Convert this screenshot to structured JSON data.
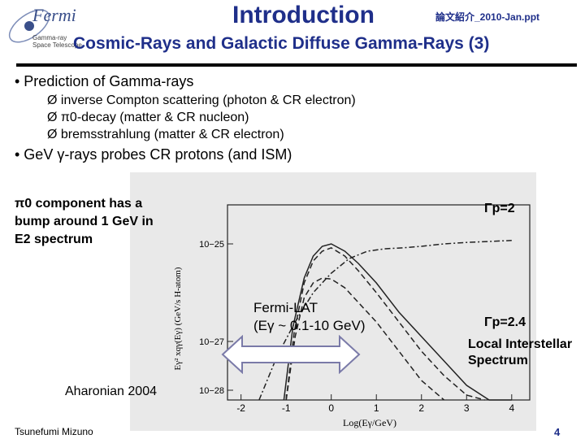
{
  "header": {
    "logo_text": "Fermi",
    "logo_sub": [
      "Gamma-ray",
      "Space Telescope"
    ],
    "title": "Introduction",
    "file_ref": "論文紹介_2010-Jan.ppt",
    "subtitle": "Cosmic-Rays and Galactic Diffuse Gamma-Rays (3)"
  },
  "body": {
    "bullet1": "• Prediction of Gamma-rays",
    "sub_bullets": [
      "Ø inverse Compton scattering (photon & CR electron)",
      "Ø π0-decay (matter & CR nucleon)",
      "Ø bremsstrahlung (matter & CR electron)"
    ],
    "bullet2": "• GeV γ-rays probes CR protons (and ISM)"
  },
  "annotations": {
    "pi0_note": [
      "π0 component has a",
      "bump around 1 GeV in",
      "E2 spectrum"
    ],
    "gamma_p2": "Γp=2",
    "gamma_p24": "Γp=2.4",
    "fermi_lat": [
      "Fermi-LAT",
      "(Eγ ~ 0.1-10 GeV)"
    ],
    "lis": [
      "Local Interstellar",
      "Spectrum"
    ],
    "reference": "Aharonian 2004"
  },
  "chart_data": {
    "type": "line",
    "title": "",
    "xlabel": "Log(Eγ/GeV)",
    "ylabel": "Eγ² xqγ(Eγ)  (GeV/s H-atom)",
    "xlim": [
      -2.3,
      4.4
    ],
    "ylim_log10": [
      -28.2,
      -24.2
    ],
    "x_ticks": [
      -2,
      -1,
      0,
      1,
      2,
      3,
      4
    ],
    "y_ticks": [
      {
        "label": "10−25",
        "log10": -25
      },
      {
        "label": "10−27",
        "log10": -27
      },
      {
        "label": "10−28",
        "log10": -28
      }
    ],
    "grid": false,
    "series": [
      {
        "style": "dot-dash",
        "x": [
          -1.6,
          -1.2,
          -0.8,
          -0.4,
          0,
          0.4,
          0.8,
          1.2,
          1.6,
          2,
          2.5,
          3,
          3.5,
          4
        ],
        "y": [
          -28.2,
          -27.3,
          -26.6,
          -26.0,
          -25.6,
          -25.3,
          -25.15,
          -25.1,
          -25.08,
          -25.05,
          -25.0,
          -24.97,
          -24.95,
          -24.93
        ]
      },
      {
        "style": "solid",
        "x": [
          -1.05,
          -0.85,
          -0.6,
          -0.4,
          -0.2,
          0,
          0.3,
          0.6,
          1,
          1.5,
          2,
          2.5,
          3,
          3.5,
          4
        ],
        "y": [
          -28.2,
          -26.7,
          -25.7,
          -25.25,
          -25.05,
          -25.0,
          -25.15,
          -25.4,
          -25.8,
          -26.4,
          -26.9,
          -27.4,
          -27.9,
          -28.2,
          -28.2
        ]
      },
      {
        "style": "dash",
        "x": [
          -1.0,
          -0.82,
          -0.6,
          -0.4,
          -0.2,
          0,
          0.3,
          0.6,
          1,
          1.5,
          2,
          2.5,
          3,
          3.4
        ],
        "y": [
          -28.2,
          -26.8,
          -25.8,
          -25.35,
          -25.15,
          -25.08,
          -25.25,
          -25.55,
          -26.0,
          -26.6,
          -27.2,
          -27.7,
          -28.1,
          -28.2
        ]
      },
      {
        "style": "dash",
        "x": [
          -1.0,
          -0.8,
          -0.6,
          -0.4,
          -0.2,
          0,
          0.3,
          0.6,
          1,
          1.5,
          2,
          2.5
        ],
        "y": [
          -28.2,
          -26.9,
          -26.1,
          -25.8,
          -25.7,
          -25.72,
          -25.9,
          -26.2,
          -26.6,
          -27.2,
          -27.8,
          -28.2
        ]
      }
    ]
  },
  "footer": {
    "author": "Tsunefumi Mizuno",
    "page": "4"
  }
}
